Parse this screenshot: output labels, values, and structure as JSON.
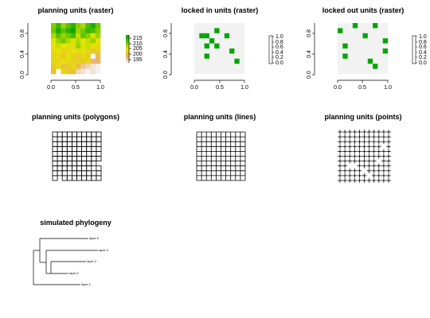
{
  "panels": {
    "raster_pu": {
      "title": "planning units (raster)",
      "x_ticks": [
        "0.0",
        "0.5",
        "1.0"
      ],
      "y_ticks": [
        "0.0",
        "0.4",
        "0.8"
      ],
      "legend_ticks": [
        "215",
        "210",
        "205",
        "200",
        "195"
      ]
    },
    "locked_in": {
      "title": "locked in units (raster)",
      "x_ticks": [
        "0.0",
        "0.5",
        "1.0"
      ],
      "y_ticks": [
        "0.0",
        "0.4",
        "0.8"
      ],
      "legend_ticks": [
        "1.0",
        "0.8",
        "0.6",
        "0.4",
        "0.2",
        "0.0"
      ]
    },
    "locked_out": {
      "title": "locked out units (raster)",
      "x_ticks": [
        "0.0",
        "0.5",
        "1.0"
      ],
      "y_ticks": [
        "0.0",
        "0.4",
        "0.8"
      ],
      "legend_ticks": [
        "1.0",
        "0.8",
        "0.6",
        "0.4",
        "0.2",
        "0.0"
      ]
    },
    "polygons": {
      "title": "planning units (polygons)"
    },
    "lines": {
      "title": "planning units (lines)"
    },
    "points": {
      "title": "planning units (points)"
    },
    "phylogeny": {
      "title": "simulated phylogeny",
      "tip_labels": [
        "layer.5",
        "layer.4",
        "layer.3",
        "layer.2",
        "layer.1"
      ]
    }
  },
  "colors": {
    "terrain": [
      "#00A600",
      "#3BB700",
      "#8BD000",
      "#E6E600",
      "#E8C32E",
      "#ECB176",
      "#F2F2F2"
    ],
    "locked": "#00A600",
    "empty_cell": "#F2F2F2"
  },
  "chart_data": [
    {
      "type": "heatmap",
      "title": "planning units (raster)",
      "x_range": [
        0,
        1
      ],
      "y_range": [
        0,
        1
      ],
      "legend": {
        "min": 193,
        "max": 218
      },
      "grid_rows_top_to_bottom": [
        [
          210,
          214,
          209,
          212,
          215,
          210,
          208,
          213,
          216,
          211
        ],
        [
          211,
          216,
          212,
          215,
          217,
          209,
          211,
          214,
          213,
          210
        ],
        [
          208,
          212,
          209,
          211,
          213,
          207,
          212,
          210,
          206,
          209
        ],
        [
          206,
          209,
          211,
          208,
          206,
          208,
          205,
          207,
          209,
          205
        ],
        [
          205,
          207,
          205,
          206,
          204,
          209,
          206,
          207,
          205,
          204
        ],
        [
          204,
          205,
          203,
          204,
          205,
          204,
          205,
          203,
          202,
          203
        ],
        [
          203,
          204,
          202,
          205,
          203,
          202,
          204,
          203,
          null,
          199
        ],
        [
          204,
          203,
          205,
          204,
          203,
          203,
          202,
          204,
          197,
          198
        ],
        [
          202,
          204,
          201,
          202,
          204,
          201,
          196,
          195,
          194,
          193
        ],
        [
          201,
          null,
          203,
          202,
          201,
          195,
          194,
          193,
          194,
          193
        ]
      ]
    },
    {
      "type": "heatmap",
      "title": "locked in units (raster)",
      "x_range": [
        0,
        1
      ],
      "y_range": [
        0,
        1
      ],
      "legend": {
        "min": 0,
        "max": 1
      },
      "locked_cells_row_col_from_top": [
        [
          1,
          4
        ],
        [
          2,
          1
        ],
        [
          2,
          2
        ],
        [
          2,
          6
        ],
        [
          3,
          3
        ],
        [
          4,
          2
        ],
        [
          4,
          4
        ],
        [
          5,
          7
        ],
        [
          6,
          2
        ],
        [
          7,
          8
        ]
      ]
    },
    {
      "type": "heatmap",
      "title": "locked out units (raster)",
      "x_range": [
        0,
        1
      ],
      "y_range": [
        0,
        1
      ],
      "legend": {
        "min": 0,
        "max": 1
      },
      "locked_cells_row_col_from_top": [
        [
          0,
          3
        ],
        [
          0,
          7
        ],
        [
          1,
          0
        ],
        [
          2,
          5
        ],
        [
          3,
          9
        ],
        [
          4,
          1
        ],
        [
          5,
          9
        ],
        [
          6,
          1
        ],
        [
          7,
          6
        ],
        [
          8,
          7
        ]
      ]
    }
  ]
}
